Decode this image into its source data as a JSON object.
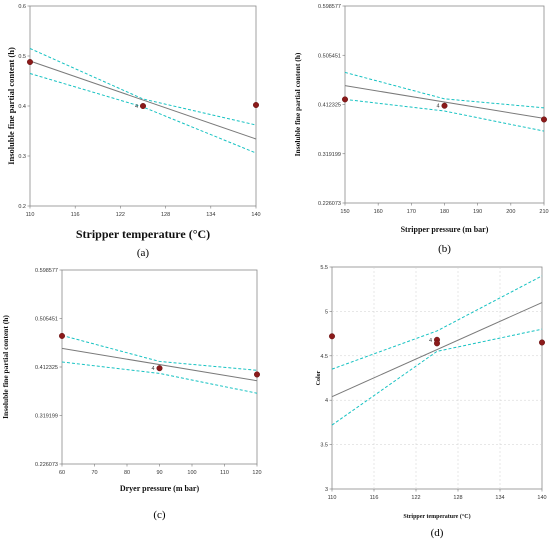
{
  "colors": {
    "fit_line": "#7a7a7a",
    "confidence_band": "#16c2c2",
    "points": "#8b1a1a",
    "frame": "#8a8a8a"
  },
  "chart_data": [
    {
      "type": "line",
      "caption": "(a)",
      "xlabel": "Stripper temperature (°C)",
      "ylabel": "Insoluble fine partial content (h)",
      "xlim": [
        110,
        140
      ],
      "ylim": [
        0.2,
        0.6
      ],
      "x_ticks": [
        "110",
        "116",
        "122",
        "128",
        "134",
        "140"
      ],
      "y_ticks": [
        "0.2",
        "0.3",
        "0.4",
        "0.5",
        "0.6"
      ],
      "grid": false,
      "fit": {
        "x": [
          110,
          140
        ],
        "y": [
          0.49,
          0.334
        ]
      },
      "band_upper": {
        "x": [
          110,
          125,
          140
        ],
        "y": [
          0.515,
          0.414,
          0.362
        ]
      },
      "band_lower": {
        "x": [
          110,
          125,
          140
        ],
        "y": [
          0.465,
          0.398,
          0.306
        ]
      },
      "points": [
        {
          "x": 110,
          "y": 0.488
        },
        {
          "x": 125,
          "y": 0.4
        },
        {
          "x": 140,
          "y": 0.402
        }
      ],
      "center_label": "4"
    },
    {
      "type": "line",
      "caption": "(b)",
      "xlabel": "Stripper pressure (m bar)",
      "ylabel": "Insoluble fine partial content (h)",
      "xlim": [
        150,
        210
      ],
      "ylim": [
        0.226073,
        0.598577
      ],
      "x_ticks": [
        "150",
        "160",
        "170",
        "180",
        "190",
        "200",
        "210"
      ],
      "y_ticks": [
        "0.226073",
        "0.319199",
        "0.412325",
        "0.505451",
        "0.598577"
      ],
      "grid": false,
      "fit": {
        "x": [
          150,
          210
        ],
        "y": [
          0.448,
          0.386
        ]
      },
      "band_upper": {
        "x": [
          150,
          180,
          210
        ],
        "y": [
          0.473,
          0.423,
          0.406
        ]
      },
      "band_lower": {
        "x": [
          150,
          180,
          210
        ],
        "y": [
          0.422,
          0.4,
          0.362
        ]
      },
      "points": [
        {
          "x": 150,
          "y": 0.422
        },
        {
          "x": 180,
          "y": 0.41
        },
        {
          "x": 210,
          "y": 0.384
        }
      ],
      "center_label": "4"
    },
    {
      "type": "line",
      "caption": "(c)",
      "xlabel": "Dryer pressure (m bar)",
      "ylabel": "Insoluble fine partial content (h)",
      "xlim": [
        60,
        120
      ],
      "ylim": [
        0.226073,
        0.598577
      ],
      "x_ticks": [
        "60",
        "70",
        "80",
        "90",
        "100",
        "110",
        "120"
      ],
      "y_ticks": [
        "0.226073",
        "0.319199",
        "0.412325",
        "0.505451",
        "0.598577"
      ],
      "grid": false,
      "fit": {
        "x": [
          60,
          120
        ],
        "y": [
          0.448,
          0.386
        ]
      },
      "band_upper": {
        "x": [
          60,
          90,
          120
        ],
        "y": [
          0.473,
          0.423,
          0.406
        ]
      },
      "band_lower": {
        "x": [
          60,
          90,
          120
        ],
        "y": [
          0.422,
          0.4,
          0.362
        ]
      },
      "points": [
        {
          "x": 60,
          "y": 0.472
        },
        {
          "x": 90,
          "y": 0.41
        },
        {
          "x": 120,
          "y": 0.398
        }
      ],
      "center_label": "4"
    },
    {
      "type": "line",
      "caption": "(d)",
      "xlabel": "Stripper temperature (°C)",
      "ylabel": "Color",
      "xlim": [
        110,
        140
      ],
      "ylim": [
        3,
        5.5
      ],
      "x_ticks": [
        "110",
        "116",
        "122",
        "128",
        "134",
        "140"
      ],
      "y_ticks": [
        "3",
        "3.5",
        "4",
        "4.5",
        "5",
        "5.5"
      ],
      "grid": true,
      "fit": {
        "x": [
          110,
          140
        ],
        "y": [
          4.04,
          5.1
        ]
      },
      "band_upper": {
        "x": [
          110,
          125,
          140
        ],
        "y": [
          4.35,
          4.78,
          5.4
        ]
      },
      "band_lower": {
        "x": [
          110,
          125,
          140
        ],
        "y": [
          3.72,
          4.55,
          4.8
        ]
      },
      "points": [
        {
          "x": 110,
          "y": 4.72
        },
        {
          "x": 125,
          "y": 4.68
        },
        {
          "x": 125,
          "y": 4.64
        },
        {
          "x": 140,
          "y": 4.65
        }
      ],
      "center_label": "4"
    }
  ]
}
